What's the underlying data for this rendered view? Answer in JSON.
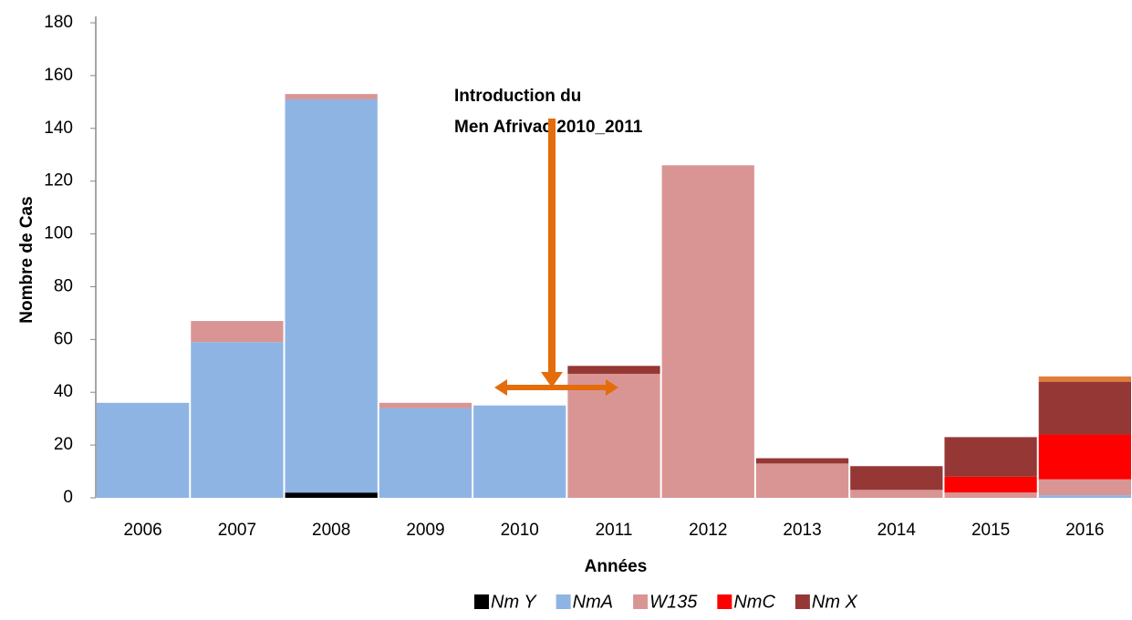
{
  "chart_data": {
    "type": "stacked_bar",
    "annotation": [
      "Introduction du",
      "Men Afrivac 2010_2011"
    ],
    "xlabel": "Années",
    "ylabel": "Nombre de Cas",
    "categories": [
      "2006",
      "2007",
      "2008",
      "2009",
      "2010",
      "2011",
      "2012",
      "2013",
      "2014",
      "2015",
      "2016"
    ],
    "series": [
      {
        "name": "Nm Y",
        "color": "#000000",
        "values": [
          0,
          0,
          2,
          0,
          0,
          0,
          0,
          0,
          0,
          0,
          0
        ]
      },
      {
        "name": "NmA",
        "color": "#8eb4e3",
        "values": [
          36,
          59,
          149,
          34,
          35,
          0,
          0,
          0,
          0,
          0,
          1
        ]
      },
      {
        "name": "W135",
        "color": "#d99594",
        "values": [
          0,
          8,
          2,
          2,
          0,
          47,
          126,
          13,
          3,
          2,
          6
        ]
      },
      {
        "name": "NmC",
        "color": "#ff0000",
        "values": [
          0,
          0,
          0,
          0,
          0,
          0,
          0,
          0,
          0,
          6,
          17
        ]
      },
      {
        "name": "Nm X",
        "color": "#953735",
        "values": [
          0,
          0,
          0,
          0,
          0,
          3,
          0,
          2,
          9,
          15,
          20
        ]
      },
      {
        "color": "#e07b39",
        "values": [
          0,
          0,
          0,
          0,
          0,
          0,
          0,
          0,
          0,
          0,
          2
        ]
      }
    ],
    "ylim": [
      0,
      180
    ],
    "yticks": [
      0,
      20,
      40,
      60,
      80,
      100,
      120,
      140,
      160,
      180
    ]
  }
}
